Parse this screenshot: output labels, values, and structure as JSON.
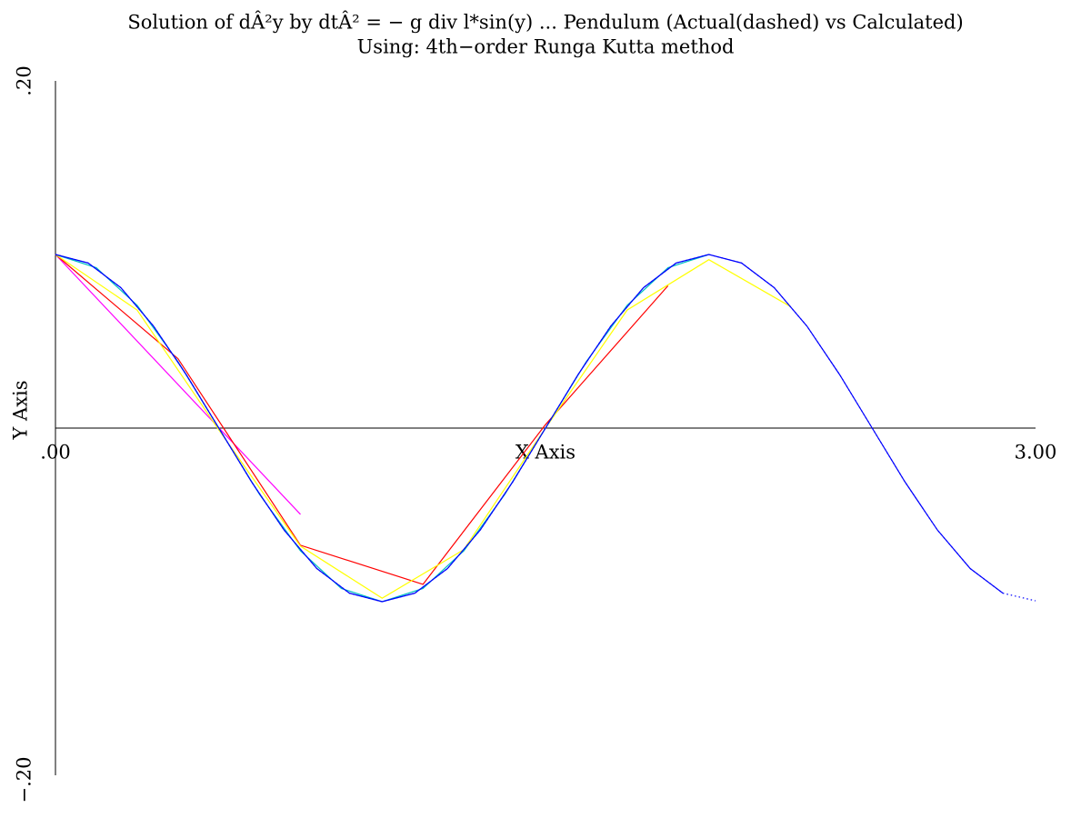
{
  "chart_data": {
    "type": "line",
    "title": "Solution of dÂ²y by dtÂ² = − g div l*sin(y) ... Pendulum (Actual(dashed) vs Calculated)",
    "subtitle": "Using: 4th−order Runga Kutta method",
    "x_label": "X Axis",
    "y_label": "Y Axis",
    "xlim": [
      0,
      3
    ],
    "ylim": [
      -0.2,
      0.2
    ],
    "xticks": [
      {
        "value": 0,
        "label": ".00"
      },
      {
        "value": 3,
        "label": "3.00"
      }
    ],
    "yticks": [
      {
        "value": -0.2,
        "label": "−.20"
      },
      {
        "value": 0.2,
        "label": ".20"
      }
    ],
    "grid": false,
    "series": [
      {
        "color": "#ff00ff",
        "dash": false,
        "x": [
          0,
          0.75
        ],
        "values": [
          0.1,
          -0.0497
        ]
      },
      {
        "color": "#ff0000",
        "dash": false,
        "x": [
          0,
          0.375,
          0.75,
          1.125,
          1.5,
          1.875
        ],
        "values": [
          0.1,
          0.04,
          -0.0675,
          -0.09,
          0.002,
          0.082
        ]
      },
      {
        "color": "#ffff00",
        "dash": false,
        "x": [
          0,
          0.25,
          0.5,
          0.75,
          1.0,
          1.25,
          1.5,
          1.75,
          2.0,
          2.25
        ],
        "values": [
          0.1,
          0.068,
          -0.001,
          -0.068,
          -0.098,
          -0.07,
          0,
          0.068,
          0.097,
          0.07
        ]
      },
      {
        "color": "#00c0c0",
        "dash": false,
        "x": [
          0,
          0.125,
          0.25,
          0.375,
          0.5,
          0.625,
          0.75,
          0.875,
          1.0,
          1.125,
          1.25,
          1.375,
          1.5,
          1.625,
          1.75,
          1.875,
          2.0
        ],
        "values": [
          0.1,
          0.0924,
          0.0707,
          0.0383,
          0,
          -0.0383,
          -0.0707,
          -0.0924,
          -0.1,
          -0.0924,
          -0.0707,
          -0.0383,
          0,
          0.0383,
          0.0707,
          0.0924,
          0.1
        ]
      },
      {
        "color": "#0000ff",
        "dash": false,
        "x": [
          0,
          0.1,
          0.2,
          0.3,
          0.4,
          0.5,
          0.6,
          0.7,
          0.8,
          0.9,
          1.0,
          1.1,
          1.2,
          1.3,
          1.4,
          1.5,
          1.6,
          1.7,
          1.8,
          1.9,
          2.0,
          2.1,
          2.2,
          2.3,
          2.4,
          2.5,
          2.6,
          2.7,
          2.8,
          2.9
        ],
        "values": [
          0.1,
          0.0951,
          0.0809,
          0.0588,
          0.0309,
          0,
          -0.0309,
          -0.0588,
          -0.0809,
          -0.0951,
          -0.1,
          -0.0951,
          -0.0809,
          -0.0588,
          -0.0309,
          0,
          0.0309,
          0.0588,
          0.0809,
          0.0951,
          0.1,
          0.0951,
          0.0809,
          0.0588,
          0.0309,
          0,
          -0.0309,
          -0.0588,
          -0.0809,
          -0.0951
        ]
      },
      {
        "color": "#0000ff",
        "dash": true,
        "x": [
          0,
          0.1,
          0.2,
          0.3,
          0.4,
          0.5,
          0.6,
          0.7,
          0.8,
          0.9,
          1.0,
          1.1,
          1.2,
          1.3,
          1.4,
          1.5,
          1.6,
          1.7,
          1.8,
          1.9,
          2.0,
          2.1,
          2.2,
          2.3,
          2.4,
          2.5,
          2.6,
          2.7,
          2.8,
          2.9,
          3.0
        ],
        "values": [
          0.1,
          0.0951,
          0.0809,
          0.0588,
          0.0309,
          0,
          -0.0309,
          -0.0588,
          -0.0809,
          -0.0951,
          -0.1,
          -0.0951,
          -0.0809,
          -0.0588,
          -0.0309,
          0,
          0.0309,
          0.0588,
          0.0809,
          0.0951,
          0.1,
          0.0951,
          0.0809,
          0.0588,
          0.0309,
          0,
          -0.0309,
          -0.0588,
          -0.0809,
          -0.0951,
          -0.0995
        ]
      }
    ]
  }
}
